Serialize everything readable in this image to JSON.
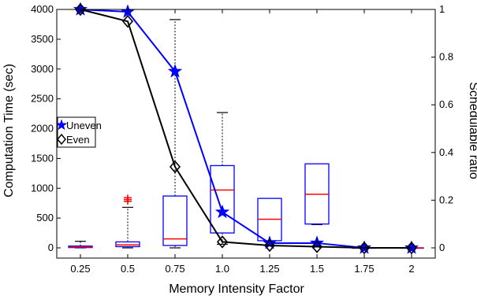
{
  "chart_data": {
    "type": "box+line",
    "xlabel": "Memory Intensity Factor",
    "ylabel_left": "Computation Time (sec)",
    "ylabel_right": "Schedulable ratio",
    "categories": [
      "0.25",
      "0.5",
      "0.75",
      "1.0",
      "1.25",
      "1.5",
      "1.75",
      "2"
    ],
    "ylim_left": [
      0,
      4000
    ],
    "ylim_right": [
      0,
      1
    ],
    "yticks_left": [
      "0",
      "500",
      "1000",
      "1500",
      "2000",
      "2500",
      "3000",
      "3500",
      "4000"
    ],
    "yticks_right": [
      "0",
      "0.2",
      "0.4",
      "0.6",
      "0.8",
      "1"
    ],
    "grid": false,
    "legend_placement": "left",
    "boxplot": [
      {
        "category": "0.25",
        "whisker_low": 0,
        "q1": 5,
        "median": 15,
        "q3": 30,
        "whisker_high": 110,
        "outliers": []
      },
      {
        "category": "0.5",
        "whisker_low": 0,
        "q1": 20,
        "median": 50,
        "q3": 100,
        "whisker_high": 680,
        "outliers": [
          780,
          810,
          840
        ]
      },
      {
        "category": "0.75",
        "whisker_low": 0,
        "q1": 40,
        "median": 150,
        "q3": 870,
        "whisker_high": 3830,
        "outliers": []
      },
      {
        "category": "1.0",
        "whisker_low": 60,
        "q1": 250,
        "median": 970,
        "q3": 1380,
        "whisker_high": 2270,
        "outliers": []
      },
      {
        "category": "1.25",
        "whisker_low": 100,
        "q1": 120,
        "median": 480,
        "q3": 830,
        "whisker_high": 830,
        "outliers": []
      },
      {
        "category": "1.5",
        "whisker_low": 390,
        "q1": 400,
        "median": 900,
        "q3": 1410,
        "whisker_high": 1410,
        "outliers": []
      },
      {
        "category": "1.75",
        "whisker_low": 0,
        "q1": 0,
        "median": 0,
        "q3": 0,
        "whisker_high": 0,
        "outliers": []
      },
      {
        "category": "2",
        "whisker_low": 0,
        "q1": 0,
        "median": 0,
        "q3": 0,
        "whisker_high": 0,
        "outliers": []
      }
    ],
    "series": [
      {
        "name": "Uneven",
        "axis": "right",
        "values": [
          1.0,
          0.99,
          0.74,
          0.15,
          0.02,
          0.02,
          0.0,
          0.0
        ],
        "color": "#0000ff",
        "marker": "star"
      },
      {
        "name": "Even",
        "axis": "right",
        "values": [
          1.0,
          0.95,
          0.34,
          0.025,
          0.01,
          0.005,
          0.0,
          0.0
        ],
        "color": "#000000",
        "marker": "diamond"
      }
    ],
    "colors": {
      "box": "#0000ff",
      "median": "#ff0000",
      "whisker": "#000000",
      "outlier": "#ff0000"
    }
  }
}
